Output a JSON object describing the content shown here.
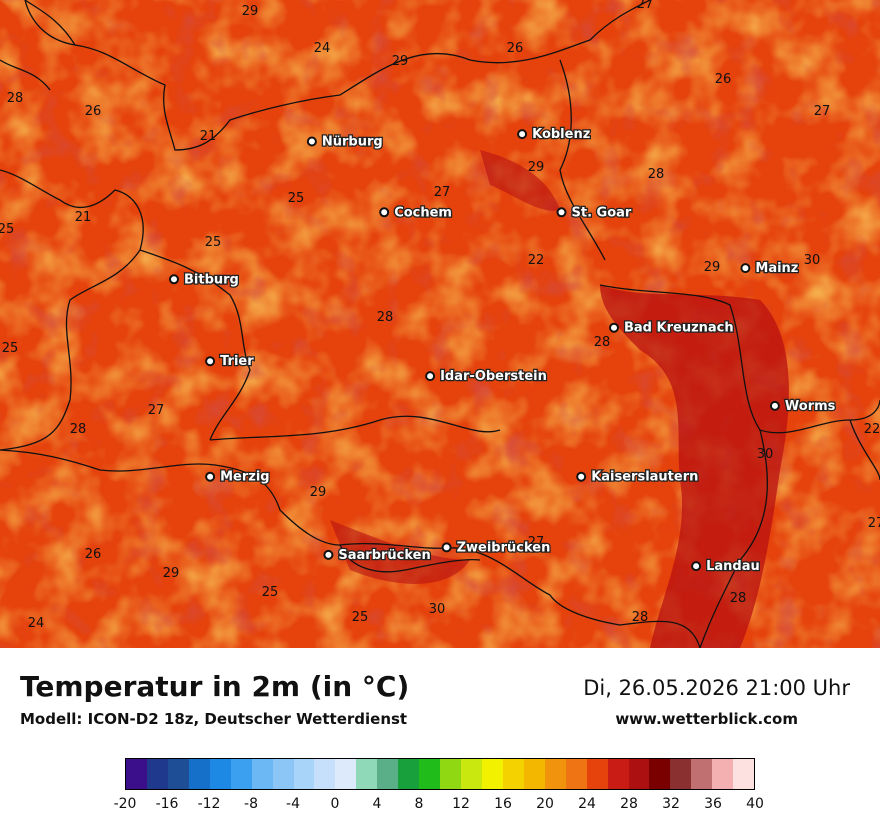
{
  "map": {
    "cities": [
      {
        "name": "Nürburg",
        "lon": 6.95,
        "lat": 50.34
      },
      {
        "name": "Koblenz",
        "lon": 7.59,
        "lat": 50.36
      },
      {
        "name": "Cochem",
        "lon": 7.17,
        "lat": 50.15
      },
      {
        "name": "St. Goar",
        "lon": 7.71,
        "lat": 50.15
      },
      {
        "name": "Bitburg",
        "lon": 6.53,
        "lat": 49.97
      },
      {
        "name": "Mainz",
        "lon": 8.27,
        "lat": 50.0
      },
      {
        "name": "Bad Kreuznach",
        "lon": 7.87,
        "lat": 49.84
      },
      {
        "name": "Trier",
        "lon": 6.64,
        "lat": 49.75
      },
      {
        "name": "Idar-Oberstein",
        "lon": 7.31,
        "lat": 49.71
      },
      {
        "name": "Worms",
        "lon": 8.36,
        "lat": 49.63
      },
      {
        "name": "Merzig",
        "lon": 6.64,
        "lat": 49.44
      },
      {
        "name": "Kaiserslautern",
        "lon": 7.77,
        "lat": 49.44
      },
      {
        "name": "Saarbrücken",
        "lon": 7.0,
        "lat": 49.23
      },
      {
        "name": "Zweibrücken",
        "lon": 7.36,
        "lat": 49.25
      },
      {
        "name": "Landau",
        "lon": 8.12,
        "lat": 49.2
      }
    ],
    "values": [
      "29",
      "27",
      "24",
      "29",
      "26",
      "28",
      "26",
      "26",
      "27",
      "21",
      "21",
      "29",
      "27",
      "28",
      "25",
      "25",
      "25",
      "22",
      "29",
      "30",
      "28",
      "28",
      "25",
      "27",
      "28",
      "22",
      "30",
      "29",
      "26",
      "29",
      "27",
      "27",
      "25",
      "24",
      "25",
      "30",
      "28",
      "28"
    ]
  },
  "footer": {
    "title": "Temperatur in 2m (in °C)",
    "model": "Modell: ICON-D2 18z, Deutscher Wetterdienst",
    "datetime": "Di, 26.05.2026 21:00 Uhr",
    "website": "www.wetterblick.com"
  },
  "legend": {
    "ticks": [
      "-20",
      "-16",
      "-12",
      "-8",
      "-4",
      "0",
      "4",
      "8",
      "12",
      "16",
      "20",
      "24",
      "28",
      "32",
      "36",
      "40"
    ],
    "colors": [
      "#3b0f8c",
      "#1f3a8c",
      "#1e4f96",
      "#1470c8",
      "#1e88e5",
      "#3ca0f0",
      "#6cb8f5",
      "#8cc6f7",
      "#a8d4fa",
      "#c6e0fb",
      "#dceafc",
      "#8fd8b8",
      "#5aae88",
      "#18a03c",
      "#20bd1a",
      "#8fd812",
      "#c8e810",
      "#f2f200",
      "#f3d200",
      "#f3b700",
      "#f1930c",
      "#ee7414",
      "#e5420c",
      "#c81c14",
      "#ad1010",
      "#7a0000",
      "#8b3030",
      "#c07070",
      "#f4b0b0",
      "#fde0e0"
    ],
    "range": [
      -20,
      40
    ]
  }
}
